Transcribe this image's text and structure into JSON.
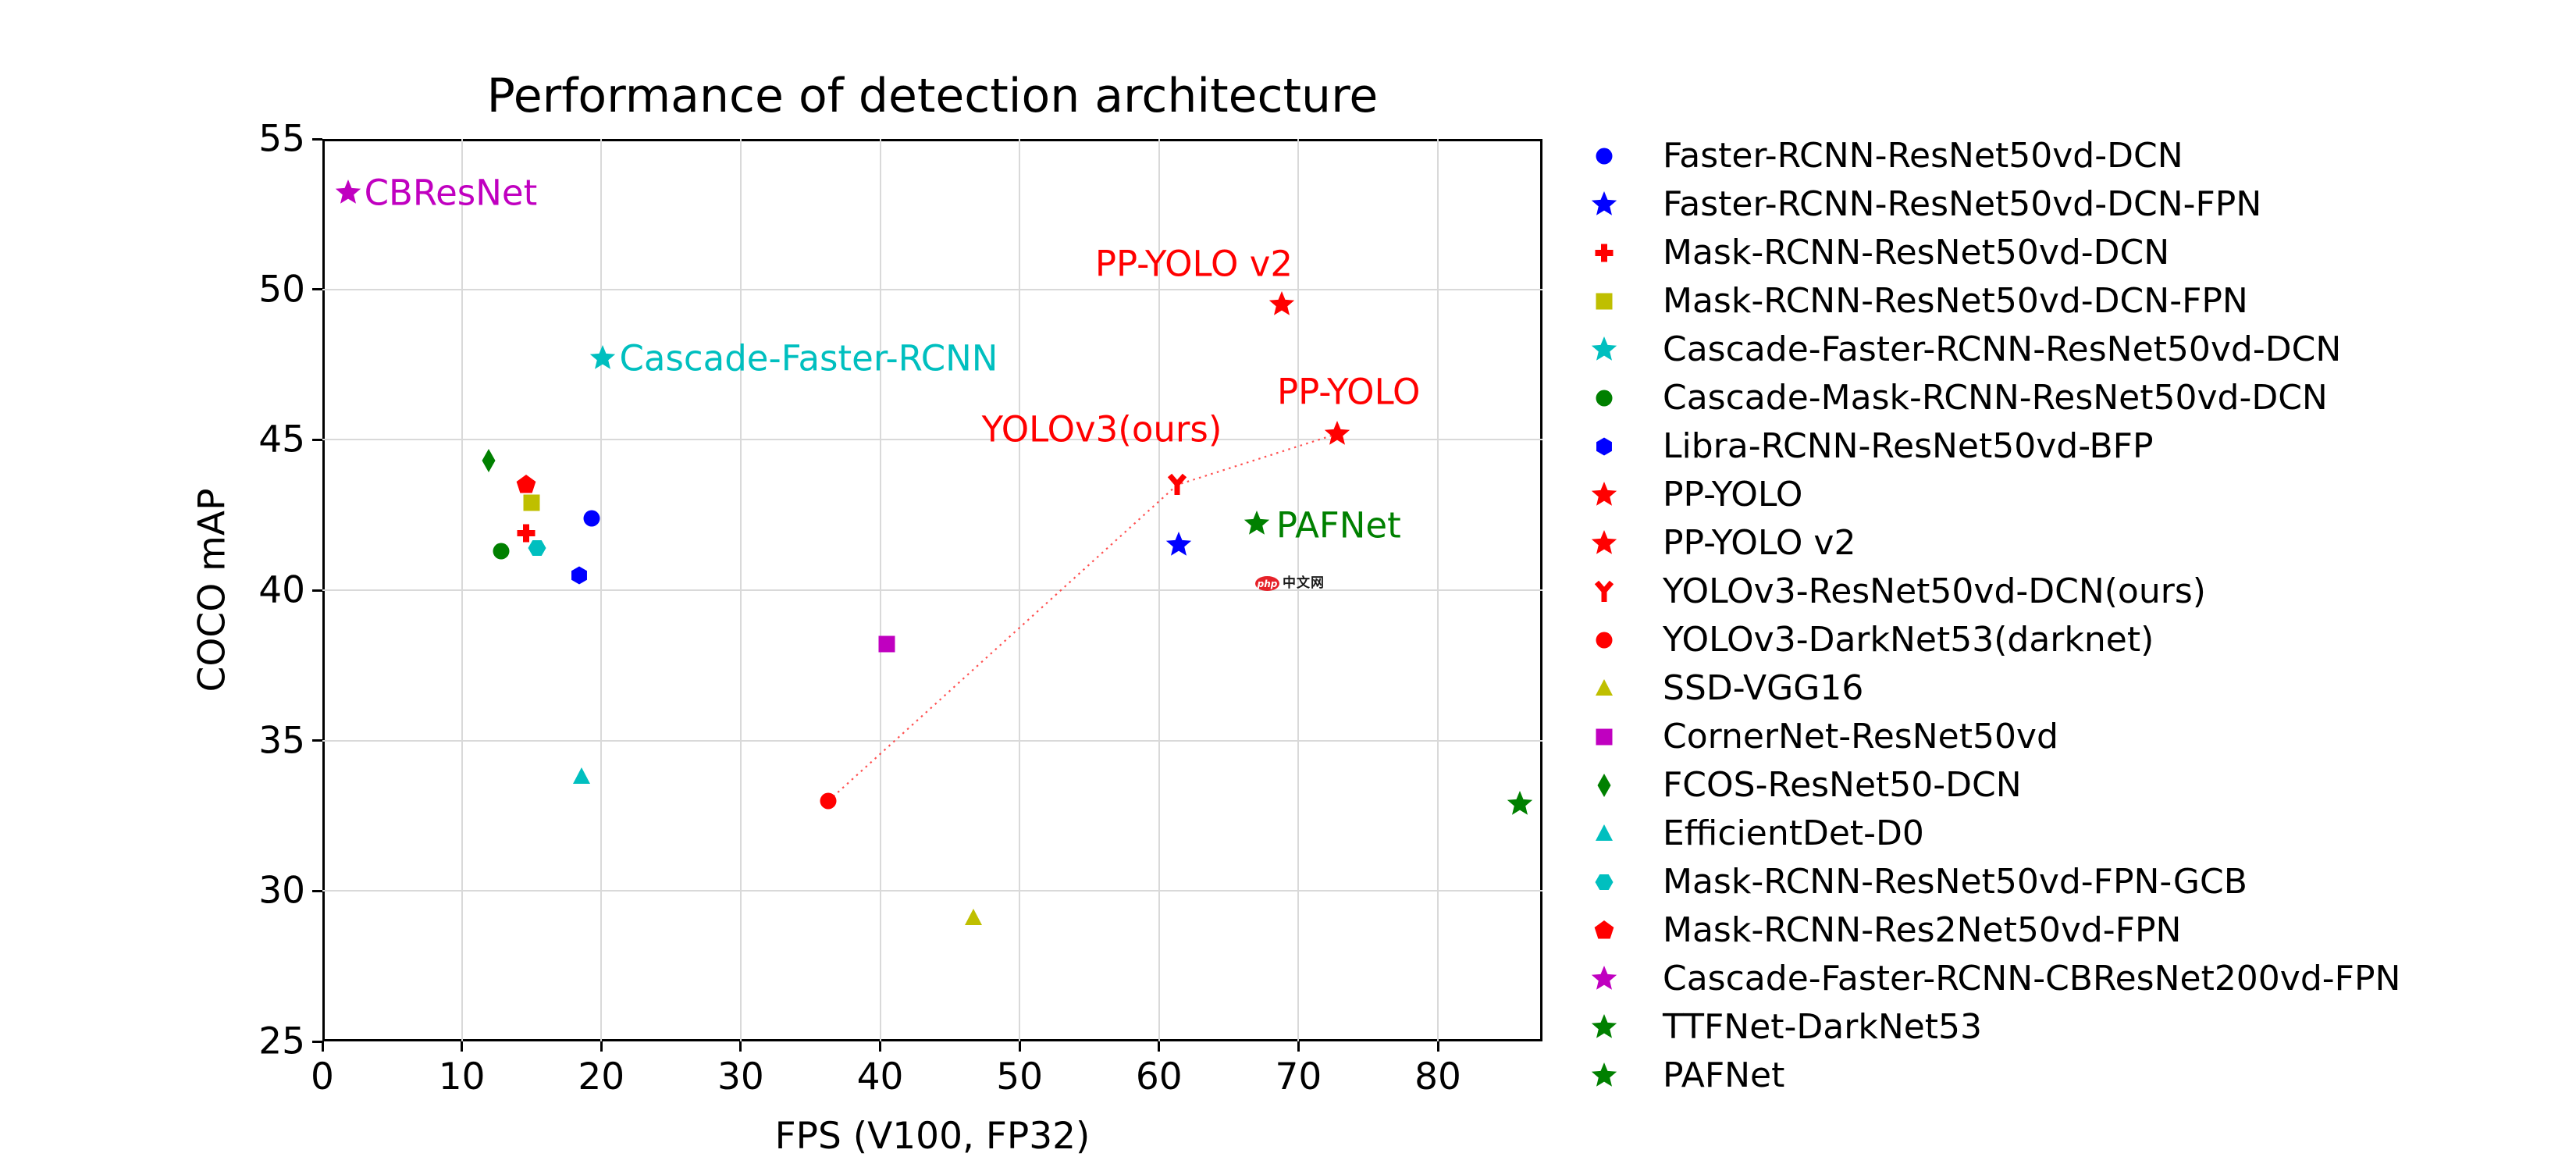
{
  "chart_data": {
    "type": "scatter",
    "title": "Performance of detection architecture",
    "xlabel": "FPS (V100, FP32)",
    "ylabel": "COCO mAP",
    "xlim": [
      0,
      87.5
    ],
    "ylim": [
      25,
      55
    ],
    "x_ticks": [
      0,
      10,
      20,
      30,
      40,
      50,
      60,
      70,
      80
    ],
    "y_ticks": [
      25,
      30,
      35,
      40,
      45,
      50,
      55
    ],
    "grid": true,
    "legend_position": "right-outside",
    "series": [
      {
        "name": "Faster-RCNN-ResNet50vd-DCN",
        "marker": "circle",
        "color": "#0000ff",
        "x": 19.3,
        "y": 42.4
      },
      {
        "name": "Faster-RCNN-ResNet50vd-DCN-FPN",
        "marker": "star",
        "color": "#0000ff",
        "x": 61.4,
        "y": 41.5
      },
      {
        "name": "Mask-RCNN-ResNet50vd-DCN",
        "marker": "plus",
        "color": "#ff0000",
        "x": 14.6,
        "y": 41.9
      },
      {
        "name": "Mask-RCNN-ResNet50vd-DCN-FPN",
        "marker": "square",
        "color": "#bfbf00",
        "x": 15.0,
        "y": 42.9
      },
      {
        "name": "Cascade-Faster-RCNN-ResNet50vd-DCN",
        "marker": "star",
        "color": "#00bfbf",
        "x": 20.1,
        "y": 47.7
      },
      {
        "name": "Cascade-Mask-RCNN-ResNet50vd-DCN",
        "marker": "circle",
        "color": "#008000",
        "x": 12.8,
        "y": 41.3
      },
      {
        "name": "Libra-RCNN-ResNet50vd-BFP",
        "marker": "hexagon",
        "color": "#0000ff",
        "x": 18.4,
        "y": 40.5
      },
      {
        "name": "PP-YOLO",
        "marker": "star",
        "color": "#ff0000",
        "x": 72.8,
        "y": 45.2
      },
      {
        "name": "PP-YOLO v2",
        "marker": "star",
        "color": "#ff0000",
        "x": 68.8,
        "y": 49.5
      },
      {
        "name": "YOLOv3-ResNet50vd-DCN(ours)",
        "marker": "y-marker",
        "color": "#ff0000",
        "x": 61.3,
        "y": 43.5
      },
      {
        "name": "YOLOv3-DarkNet53(darknet)",
        "marker": "circle",
        "color": "#ff0000",
        "x": 36.3,
        "y": 33.0
      },
      {
        "name": "SSD-VGG16",
        "marker": "triangle",
        "color": "#bfbf00",
        "x": 46.7,
        "y": 29.1
      },
      {
        "name": "CornerNet-ResNet50vd",
        "marker": "square",
        "color": "#c000c0",
        "x": 40.5,
        "y": 38.2
      },
      {
        "name": "FCOS-ResNet50-DCN",
        "marker": "diamond-thin",
        "color": "#008000",
        "x": 11.9,
        "y": 44.3
      },
      {
        "name": "EfficientDet-D0",
        "marker": "triangle",
        "color": "#00bfbf",
        "x": 18.6,
        "y": 33.8
      },
      {
        "name": "Mask-RCNN-ResNet50vd-FPN-GCB",
        "marker": "hexagon-flat",
        "color": "#00bfbf",
        "x": 15.4,
        "y": 41.4
      },
      {
        "name": "Mask-RCNN-Res2Net50vd-FPN",
        "marker": "pentagon",
        "color": "#ff0000",
        "x": 14.6,
        "y": 43.5
      },
      {
        "name": "Cascade-Faster-RCNN-CBResNet200vd-FPN",
        "marker": "star",
        "color": "#c000c0",
        "x": 1.85,
        "y": 53.2
      },
      {
        "name": "TTFNet-DarkNet53",
        "marker": "star",
        "color": "#008000",
        "x": 85.9,
        "y": 32.9
      },
      {
        "name": "PAFNet",
        "marker": "star",
        "color": "#008000",
        "x": 67.0,
        "y": 42.2
      }
    ],
    "trend_line": {
      "connects": [
        "YOLOv3-DarkNet53(darknet)",
        "YOLOv3-ResNet50vd-DCN(ours)",
        "PP-YOLO"
      ],
      "points": [
        [
          36.3,
          33.0
        ],
        [
          61.3,
          43.5
        ],
        [
          72.8,
          45.2
        ]
      ],
      "color": "#ff3333",
      "style": "dotted"
    },
    "annotations": [
      {
        "text": "CBResNet",
        "x": 3.0,
        "y": 53.2,
        "color": "#c000c0",
        "anchor": "left"
      },
      {
        "text": "Cascade-Faster-RCNN",
        "x": 21.3,
        "y": 47.7,
        "color": "#00bfbf",
        "anchor": "left"
      },
      {
        "text": "YOLOv3(ours)",
        "x": 55.9,
        "y": 45.35,
        "color": "#ff0000",
        "anchor": "center"
      },
      {
        "text": "PP-YOLO v2",
        "x": 62.5,
        "y": 50.85,
        "color": "#ff0000",
        "anchor": "center"
      },
      {
        "text": "PP-YOLO",
        "x": 73.6,
        "y": 46.6,
        "color": "#ff0000",
        "anchor": "center"
      },
      {
        "text": "PAFNet",
        "x": 68.4,
        "y": 42.15,
        "color": "#008000",
        "anchor": "left"
      }
    ],
    "watermark": {
      "logo_text": "php",
      "text": "中文网",
      "logo_color": "#e62129",
      "x": 66.9,
      "y": 40.2
    }
  }
}
